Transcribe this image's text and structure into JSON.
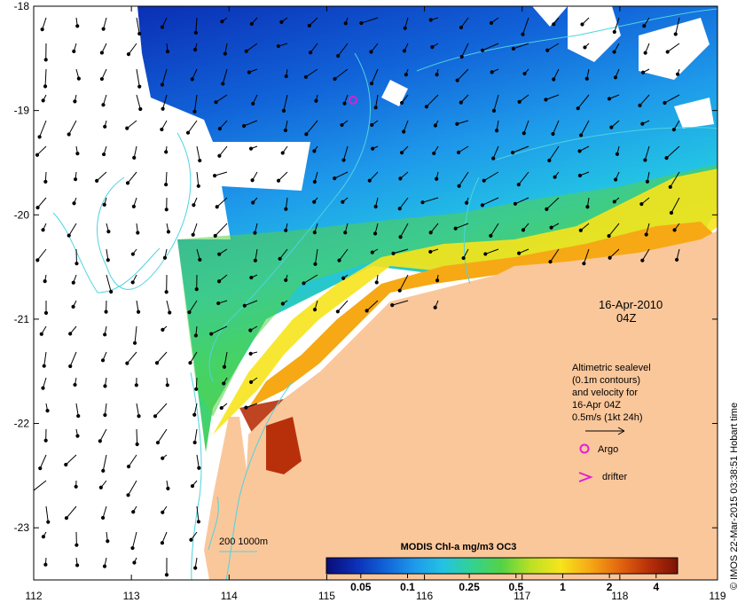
{
  "map": {
    "date_label": "16-Apr-2010",
    "time_label": "04Z",
    "x_ticks": [
      "112",
      "113",
      "114",
      "115",
      "116",
      "117",
      "118",
      "119"
    ],
    "y_ticks": [
      "-18",
      "-19",
      "-20",
      "-21",
      "-22",
      "-23"
    ],
    "extent": {
      "lon": [
        112,
        119
      ],
      "lat": [
        -23.5,
        -18
      ]
    },
    "colors": {
      "land": "#fac79b",
      "background": "#ffffff",
      "contour": "#4fd3e0",
      "argo": "#e020d0",
      "drifter": "#e020d0"
    }
  },
  "legend": {
    "lines": [
      "Altimetric sealevel",
      "(0.1m contours)",
      "and velocity for",
      "16-Apr 04Z",
      "0.5m/s (1kt 24h)"
    ],
    "argo_label": "Argo",
    "drifter_label": "drifter",
    "isobath_label": "200  1000m"
  },
  "colorbar": {
    "title": "MODIS Chl-a mg/m3 OC3",
    "tick_labels": [
      "0.05",
      "0.1",
      "0.25",
      "0.5",
      "1",
      "2",
      "4"
    ],
    "tick_values": [
      0.05,
      0.1,
      0.25,
      0.5,
      1,
      2,
      4
    ],
    "range": [
      0.03,
      5.5
    ],
    "scale": "log",
    "colormap": [
      "#0a0c78",
      "#0b2fb5",
      "#1162d8",
      "#1e99ea",
      "#23c3e4",
      "#34d28f",
      "#54d245",
      "#bde024",
      "#f7e41c",
      "#f6a915",
      "#e4670e",
      "#b8300a",
      "#7d1205"
    ]
  },
  "credit": "© IMOS 22-Mar-2015 03:38:51 Hobart time"
}
